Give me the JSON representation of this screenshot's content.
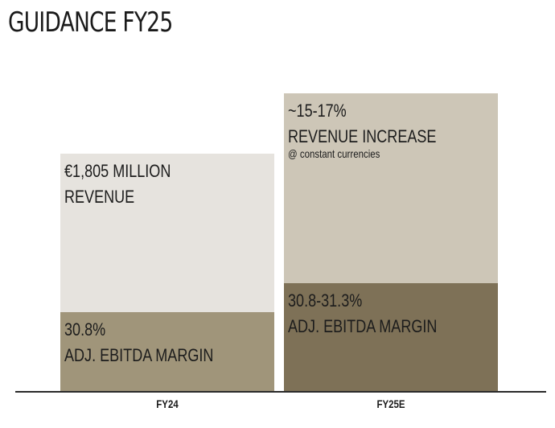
{
  "title": "GUIDANCE FY25",
  "chart_data": {
    "type": "bar",
    "stacked": true,
    "categories": [
      "FY24",
      "FY25E"
    ],
    "series": [
      {
        "name": "ADJ. EBITDA MARGIN",
        "color": "#a0957a",
        "colors": [
          "#a0957a",
          "#7e7157"
        ],
        "values": [
          99,
          135
        ],
        "labels": [
          [
            "30.8%",
            "ADJ. EBITDA MARGIN"
          ],
          [
            "30.8-31.3%",
            "ADJ. EBITDA MARGIN"
          ]
        ]
      },
      {
        "name": "REVENUE",
        "color": "#e6e3de",
        "colors": [
          "#e6e3de",
          "#cdc6b7"
        ],
        "values": [
          197,
          236
        ],
        "labels": [
          [
            "€1,805 MILLION",
            "REVENUE"
          ],
          [
            "~15-17%",
            "REVENUE INCREASE"
          ]
        ],
        "notes": [
          "",
          "@ constant currencies"
        ]
      }
    ],
    "ylim": [
      0,
      380
    ],
    "xlabel": "",
    "ylabel": "",
    "grid": false,
    "legend": "none"
  }
}
